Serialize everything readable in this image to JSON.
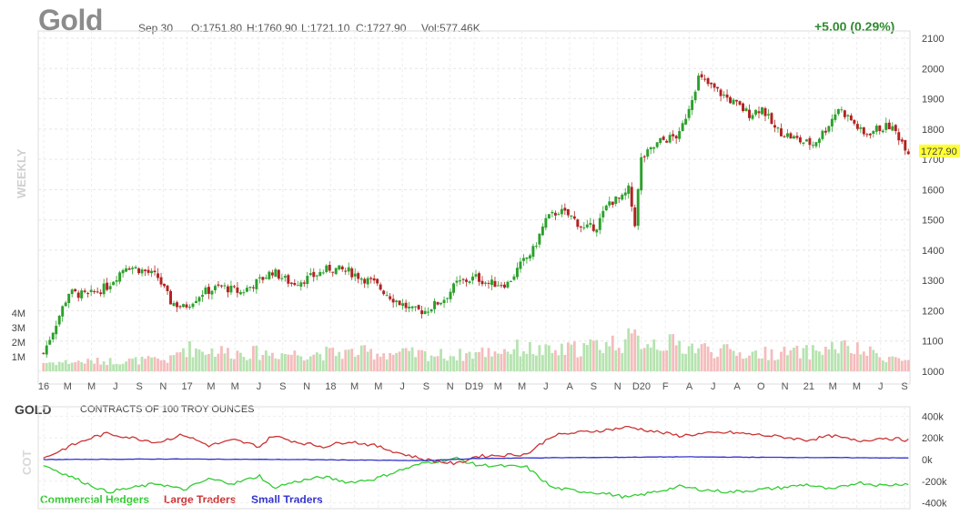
{
  "header": {
    "symbol": "Gold",
    "date": "Sep 30",
    "open": "O:1751.80",
    "high": "H:1760.90",
    "low": "L:1721.10",
    "close": "C:1727.90",
    "volume": "Vol:577.46K",
    "change": "+5.00 (0.29%)",
    "period": "WEEKLY"
  },
  "colors": {
    "up": "#2ca02c",
    "down": "#b22222",
    "vol_up": "#b6e3b0",
    "vol_down": "#f5bcbc",
    "commercial": "#33cc33",
    "large": "#cc3333",
    "small": "#3333cc",
    "last_price_bg": "#ffff33"
  },
  "chart_data": [
    {
      "type": "candlestick",
      "title": "Gold",
      "price_axis": {
        "ticks": [
          1000,
          1100,
          1200,
          1300,
          1400,
          1500,
          1600,
          1700,
          1800,
          1900,
          2000,
          2100
        ],
        "ylim": [
          1000,
          2100
        ]
      },
      "volume_axis": {
        "ticks": [
          "1M",
          "2M",
          "3M",
          "4M"
        ],
        "tick_values": [
          1,
          2,
          3,
          4
        ],
        "unit": "M"
      },
      "x_ticks": [
        "16",
        "M",
        "M",
        "J",
        "S",
        "N",
        "17",
        "M",
        "M",
        "J",
        "S",
        "N",
        "18",
        "M",
        "M",
        "J",
        "S",
        "N",
        "D19",
        "M",
        "M",
        "J",
        "A",
        "S",
        "N",
        "D20",
        "F",
        "A",
        "J",
        "A",
        "O",
        "N",
        "21",
        "M",
        "M",
        "J",
        "S"
      ],
      "last_price": "1727.90",
      "grid": true,
      "anchors": [
        [
          0,
          1060
        ],
        [
          8,
          1260
        ],
        [
          14,
          1250
        ],
        [
          20,
          1280
        ],
        [
          26,
          1350
        ],
        [
          32,
          1330
        ],
        [
          36,
          1310
        ],
        [
          40,
          1230
        ],
        [
          44,
          1210
        ],
        [
          50,
          1260
        ],
        [
          56,
          1280
        ],
        [
          62,
          1260
        ],
        [
          68,
          1300
        ],
        [
          72,
          1330
        ],
        [
          78,
          1290
        ],
        [
          84,
          1310
        ],
        [
          90,
          1340
        ],
        [
          96,
          1330
        ],
        [
          100,
          1310
        ],
        [
          104,
          1290
        ],
        [
          110,
          1240
        ],
        [
          116,
          1200
        ],
        [
          120,
          1200
        ],
        [
          126,
          1240
        ],
        [
          130,
          1290
        ],
        [
          136,
          1310
        ],
        [
          140,
          1290
        ],
        [
          146,
          1290
        ],
        [
          150,
          1350
        ],
        [
          154,
          1400
        ],
        [
          158,
          1500
        ],
        [
          162,
          1530
        ],
        [
          166,
          1510
        ],
        [
          170,
          1470
        ],
        [
          174,
          1480
        ],
        [
          178,
          1560
        ],
        [
          182,
          1570
        ],
        [
          184,
          1600
        ],
        [
          186,
          1490
        ],
        [
          188,
          1700
        ],
        [
          194,
          1760
        ],
        [
          200,
          1780
        ],
        [
          206,
          1970
        ],
        [
          210,
          1940
        ],
        [
          214,
          1910
        ],
        [
          218,
          1880
        ],
        [
          222,
          1850
        ],
        [
          226,
          1870
        ],
        [
          230,
          1800
        ],
        [
          234,
          1780
        ],
        [
          238,
          1760
        ],
        [
          242,
          1750
        ],
        [
          246,
          1800
        ],
        [
          250,
          1870
        ],
        [
          254,
          1830
        ],
        [
          258,
          1780
        ],
        [
          262,
          1800
        ],
        [
          266,
          1810
        ],
        [
          268,
          1790
        ],
        [
          272,
          1728
        ]
      ],
      "volume_anchors": [
        [
          0,
          0.6
        ],
        [
          40,
          0.8
        ],
        [
          44,
          1.6
        ],
        [
          60,
          1.3
        ],
        [
          80,
          1.2
        ],
        [
          100,
          1.3
        ],
        [
          130,
          1.1
        ],
        [
          150,
          1.6
        ],
        [
          160,
          1.3
        ],
        [
          186,
          2.2
        ],
        [
          200,
          1.8
        ],
        [
          220,
          1.2
        ],
        [
          240,
          1.3
        ],
        [
          250,
          1.7
        ],
        [
          272,
          0.7
        ]
      ]
    },
    {
      "type": "line",
      "title": "GOLD",
      "subtitle": "CONTRACTS OF 100 TROY OUNCES",
      "y_ticks": [
        "400k",
        "200k",
        "0k",
        "-200k",
        "-400k"
      ],
      "y_tick_values": [
        400000,
        200000,
        0,
        -200000,
        -400000
      ],
      "ylim": [
        -420000,
        420000
      ],
      "series": [
        {
          "name": "Commercial Hedgers",
          "anchors": [
            [
              0,
              -50000
            ],
            [
              8,
              -150000
            ],
            [
              16,
              -250000
            ],
            [
              20,
              -300000
            ],
            [
              28,
              -260000
            ],
            [
              36,
              -220000
            ],
            [
              44,
              -280000
            ],
            [
              52,
              -180000
            ],
            [
              60,
              -220000
            ],
            [
              68,
              -150000
            ],
            [
              72,
              -260000
            ],
            [
              80,
              -200000
            ],
            [
              88,
              -160000
            ],
            [
              96,
              -210000
            ],
            [
              104,
              -180000
            ],
            [
              112,
              -100000
            ],
            [
              120,
              -30000
            ],
            [
              130,
              10000
            ],
            [
              136,
              -50000
            ],
            [
              144,
              -60000
            ],
            [
              152,
              -70000
            ],
            [
              160,
              -260000
            ],
            [
              168,
              -290000
            ],
            [
              176,
              -310000
            ],
            [
              184,
              -350000
            ],
            [
              192,
              -300000
            ],
            [
              200,
              -250000
            ],
            [
              208,
              -280000
            ],
            [
              216,
              -300000
            ],
            [
              224,
              -280000
            ],
            [
              232,
              -260000
            ],
            [
              240,
              -230000
            ],
            [
              248,
              -280000
            ],
            [
              256,
              -210000
            ],
            [
              264,
              -240000
            ],
            [
              272,
              -220000
            ]
          ]
        },
        {
          "name": "Large Traders",
          "anchors": [
            [
              0,
              10000
            ],
            [
              8,
              120000
            ],
            [
              16,
              210000
            ],
            [
              20,
              240000
            ],
            [
              28,
              200000
            ],
            [
              36,
              160000
            ],
            [
              44,
              230000
            ],
            [
              52,
              130000
            ],
            [
              60,
              180000
            ],
            [
              68,
              120000
            ],
            [
              72,
              220000
            ],
            [
              80,
              160000
            ],
            [
              88,
              120000
            ],
            [
              96,
              170000
            ],
            [
              104,
              130000
            ],
            [
              112,
              60000
            ],
            [
              120,
              0
            ],
            [
              130,
              -40000
            ],
            [
              136,
              30000
            ],
            [
              144,
              40000
            ],
            [
              152,
              50000
            ],
            [
              160,
              220000
            ],
            [
              168,
              250000
            ],
            [
              176,
              270000
            ],
            [
              184,
              300000
            ],
            [
              192,
              260000
            ],
            [
              200,
              220000
            ],
            [
              208,
              240000
            ],
            [
              216,
              250000
            ],
            [
              224,
              230000
            ],
            [
              232,
              210000
            ],
            [
              240,
              180000
            ],
            [
              248,
              220000
            ],
            [
              256,
              170000
            ],
            [
              264,
              200000
            ],
            [
              272,
              180000
            ]
          ]
        },
        {
          "name": "Small Traders",
          "anchors": [
            [
              0,
              0
            ],
            [
              40,
              5000
            ],
            [
              80,
              0
            ],
            [
              120,
              -10000
            ],
            [
              136,
              10000
            ],
            [
              152,
              15000
            ],
            [
              176,
              20000
            ],
            [
              200,
              25000
            ],
            [
              232,
              20000
            ],
            [
              272,
              15000
            ]
          ]
        }
      ]
    }
  ]
}
